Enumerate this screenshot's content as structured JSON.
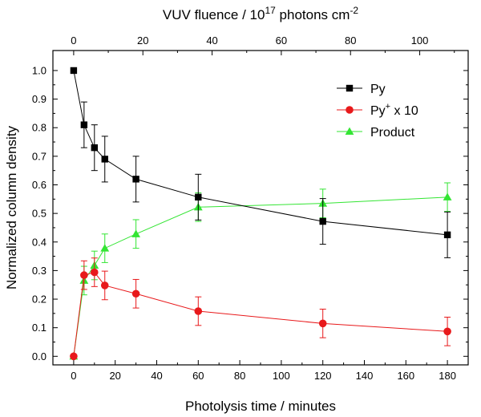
{
  "chart_data": {
    "type": "line",
    "title": "",
    "xlabel": "Photolysis time / minutes",
    "ylabel": "Normalized column density",
    "top_xlabel": {
      "main": "VUV fluence / 10",
      "sup1": "17",
      "rest": " photons cm",
      "sup2": "-2"
    },
    "xlim": [
      -10,
      190
    ],
    "ylim": [
      -0.03,
      1.07
    ],
    "xticks": [
      0,
      20,
      40,
      60,
      80,
      100,
      120,
      140,
      160,
      180
    ],
    "xtick_labels": [
      "0",
      "20",
      "40",
      "60",
      "80",
      "100",
      "120",
      "140",
      "160",
      "180"
    ],
    "yticks": [
      0.0,
      0.1,
      0.2,
      0.3,
      0.4,
      0.5,
      0.6,
      0.7,
      0.8,
      0.9,
      1.0
    ],
    "ytick_labels": [
      "0.0",
      "0.1",
      "0.2",
      "0.3",
      "0.4",
      "0.5",
      "0.6",
      "0.7",
      "0.8",
      "0.9",
      "1.0"
    ],
    "top_xticks_fluence": [
      0,
      20,
      40,
      60,
      80,
      100
    ],
    "top_xtick_labels": [
      "0",
      "20",
      "40",
      "60",
      "80",
      "100"
    ],
    "fluence_per_minute": 0.6,
    "grid": false,
    "legend_position": "top-right",
    "series": [
      {
        "name": "Py",
        "legend": {
          "main": "Py",
          "sup": "",
          "rest": ""
        },
        "color": "#000000",
        "marker": "square",
        "x": [
          0,
          5,
          10,
          15,
          30,
          60,
          120,
          180
        ],
        "values": [
          1.0,
          0.81,
          0.73,
          0.69,
          0.62,
          0.557,
          0.472,
          0.425
        ],
        "errors": [
          0,
          0.08,
          0.08,
          0.08,
          0.08,
          0.08,
          0.08,
          0.08
        ]
      },
      {
        "name": "Py+ x 10",
        "legend": {
          "main": "Py",
          "sup": "+",
          "rest": " x 10"
        },
        "color": "#e8191b",
        "marker": "circle",
        "x": [
          0,
          5,
          10,
          15,
          30,
          60,
          120,
          180
        ],
        "values": [
          0.0,
          0.284,
          0.294,
          0.248,
          0.219,
          0.158,
          0.115,
          0.087
        ],
        "errors": [
          0,
          0.05,
          0.05,
          0.05,
          0.05,
          0.05,
          0.05,
          0.05
        ]
      },
      {
        "name": "Product",
        "legend": {
          "main": "Product",
          "sup": "",
          "rest": ""
        },
        "color": "#33e533",
        "marker": "triangle",
        "x": [
          0,
          5,
          10,
          15,
          30,
          60,
          120,
          180
        ],
        "values": [
          0.0,
          0.265,
          0.318,
          0.378,
          0.428,
          0.522,
          0.535,
          0.557
        ],
        "errors": [
          0,
          0.05,
          0.05,
          0.05,
          0.05,
          0.05,
          0.05,
          0.05
        ]
      }
    ]
  }
}
